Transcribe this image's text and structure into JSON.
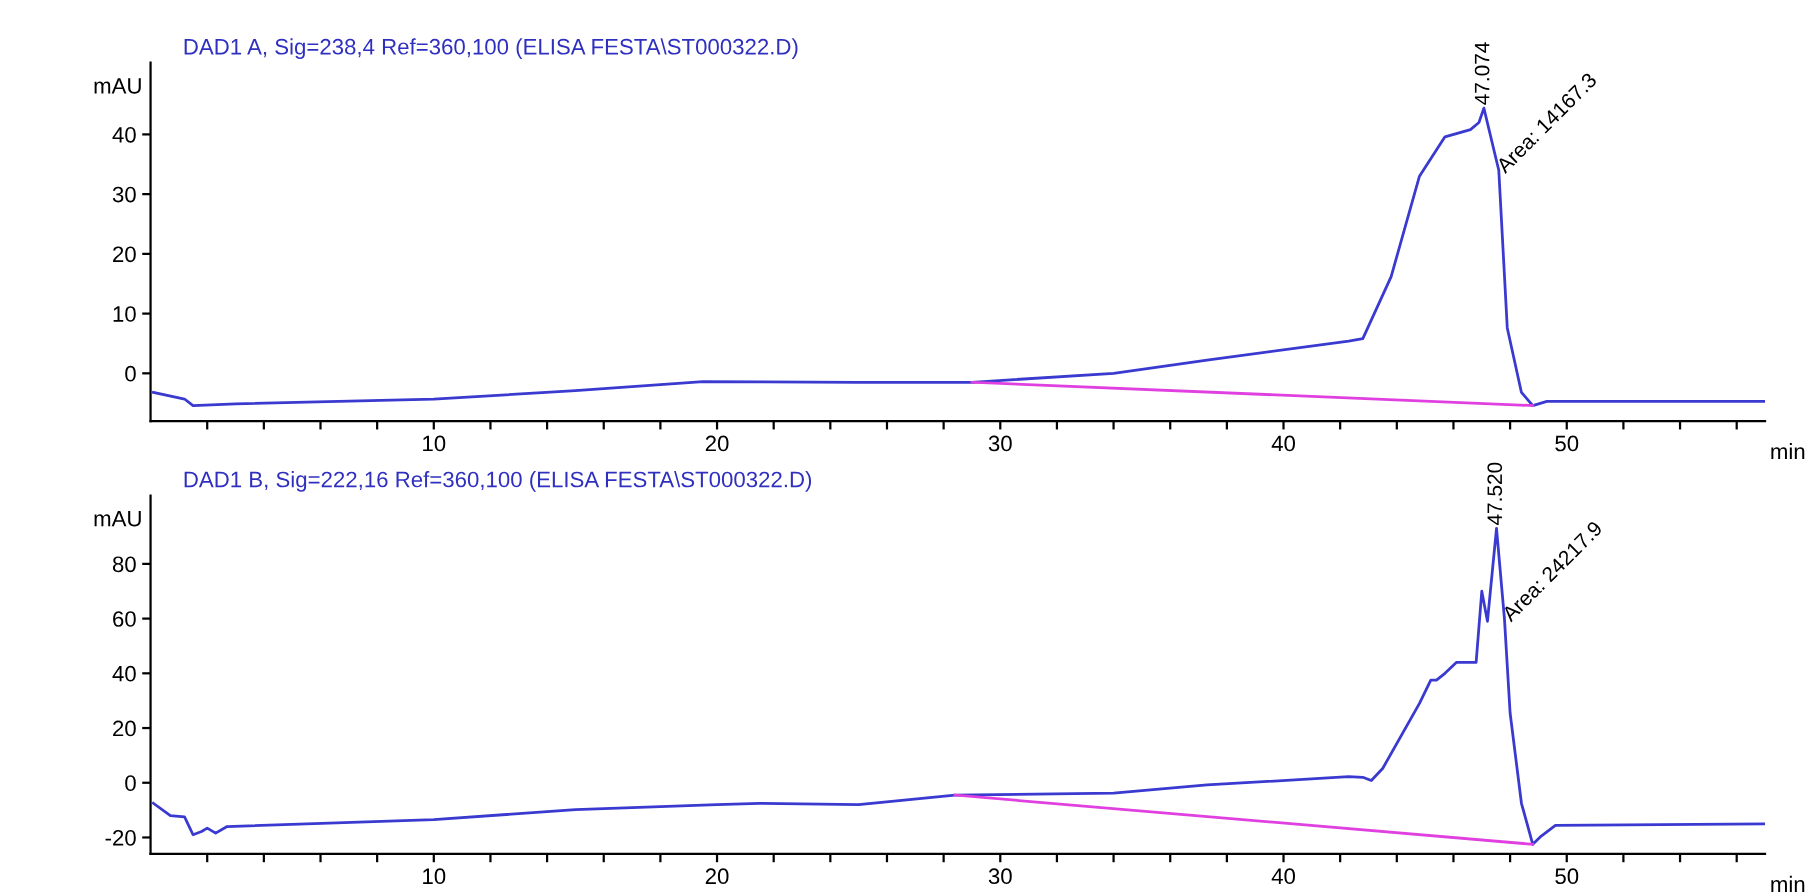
{
  "chart_data": [
    {
      "type": "line",
      "title": "DAD1 A, Sig=238,4 Ref=360,100 (ELISA FESTA\\ST000322.D)",
      "ylabel": "mAU",
      "xlabel": "min",
      "xlim": [
        0,
        57
      ],
      "ylim": [
        -8,
        52
      ],
      "xticks": [
        {
          "value": 2,
          "label": null
        },
        {
          "value": 4,
          "label": null
        },
        {
          "value": 6,
          "label": null
        },
        {
          "value": 8,
          "label": null
        },
        10,
        {
          "value": 12,
          "label": null
        },
        {
          "value": 14,
          "label": null
        },
        {
          "value": 16,
          "label": null
        },
        {
          "value": 18,
          "label": null
        },
        20,
        {
          "value": 22,
          "label": null
        },
        {
          "value": 24,
          "label": null
        },
        {
          "value": 26,
          "label": null
        },
        {
          "value": 28,
          "label": null
        },
        30,
        {
          "value": 32,
          "label": null
        },
        {
          "value": 34,
          "label": null
        },
        {
          "value": 36,
          "label": null
        },
        {
          "value": 38,
          "label": null
        },
        40,
        {
          "value": 42,
          "label": null
        },
        {
          "value": 44,
          "label": null
        },
        {
          "value": 46,
          "label": null
        },
        {
          "value": 48,
          "label": null
        },
        50,
        {
          "value": 52,
          "label": null
        },
        {
          "value": 54,
          "label": null
        },
        {
          "value": 56,
          "label": null
        }
      ],
      "yticks": [
        0,
        10,
        20,
        30,
        40
      ],
      "grid": false,
      "series": [
        {
          "color": "#3a3ad0",
          "x": [
            0.1,
            1.2,
            1.5,
            3,
            10,
            15,
            19.5,
            25,
            29.0,
            34.0,
            37.3,
            42.3,
            42.8,
            43.8,
            44.8,
            45.7,
            46.6,
            46.9,
            47.074,
            47.6,
            47.9,
            48.4,
            48.8,
            49.3,
            57
          ],
          "values": [
            -3.2,
            -4.3,
            -5.4,
            -5.1,
            -4.3,
            -2.9,
            -1.4,
            -1.5,
            -1.5,
            0,
            2.2,
            5.4,
            5.8,
            16.2,
            33,
            39.6,
            40.8,
            42,
            44.4,
            34,
            7.6,
            -3.2,
            -5.4,
            -4.7,
            -4.7
          ]
        },
        {
          "color": "#e040e0",
          "x": [
            29.0,
            48.8
          ],
          "values": [
            -1.5,
            -5.4
          ]
        }
      ],
      "annotations": [
        {
          "text": "47.074",
          "x": 47.074,
          "y": 44.4
        },
        {
          "text": "Area: 14167.3",
          "x": 47.6,
          "y": 34
        }
      ]
    },
    {
      "type": "line",
      "title": "DAD1 B, Sig=222,16 Ref=360,100 (ELISA FESTA\\ST000322.D)",
      "ylabel": "mAU",
      "xlabel": "min",
      "xlim": [
        0,
        57
      ],
      "ylim": [
        -26,
        105
      ],
      "xticks": [
        {
          "value": 2,
          "label": null
        },
        {
          "value": 4,
          "label": null
        },
        {
          "value": 6,
          "label": null
        },
        {
          "value": 8,
          "label": null
        },
        10,
        {
          "value": 12,
          "label": null
        },
        {
          "value": 14,
          "label": null
        },
        {
          "value": 16,
          "label": null
        },
        {
          "value": 18,
          "label": null
        },
        20,
        {
          "value": 22,
          "label": null
        },
        {
          "value": 24,
          "label": null
        },
        {
          "value": 26,
          "label": null
        },
        {
          "value": 28,
          "label": null
        },
        30,
        {
          "value": 32,
          "label": null
        },
        {
          "value": 34,
          "label": null
        },
        {
          "value": 36,
          "label": null
        },
        {
          "value": 38,
          "label": null
        },
        40,
        {
          "value": 42,
          "label": null
        },
        {
          "value": 44,
          "label": null
        },
        {
          "value": 46,
          "label": null
        },
        {
          "value": 48,
          "label": null
        },
        50,
        {
          "value": 52,
          "label": null
        },
        {
          "value": 54,
          "label": null
        },
        {
          "value": 56,
          "label": null
        }
      ],
      "yticks": [
        -20,
        0,
        20,
        40,
        60,
        80
      ],
      "grid": false,
      "series": [
        {
          "color": "#3a3ad0",
          "x": [
            0.1,
            0.7,
            1.2,
            1.5,
            1.8,
            2.0,
            2.3,
            2.7,
            10,
            15,
            20,
            21.5,
            25,
            28.4,
            34.0,
            37.3,
            42.3,
            42.8,
            43.1,
            43.5,
            44.8,
            45.2,
            45.4,
            45.7,
            46.1,
            46.8,
            47.0,
            47.2,
            47.52,
            47.8,
            48.0,
            48.4,
            48.8,
            49.1,
            49.6,
            57
          ],
          "values": [
            -7.5,
            -12,
            -12.5,
            -19,
            -17.8,
            -16.6,
            -18.4,
            -16,
            -13.5,
            -9.8,
            -8.0,
            -7.5,
            -8,
            -4.5,
            -3.8,
            -0.8,
            2.2,
            2,
            0.8,
            5.2,
            29,
            37.5,
            37.5,
            40,
            44,
            44,
            70,
            59,
            93,
            60,
            25.5,
            -7.5,
            -22.5,
            -19.5,
            -15.6,
            -15
          ]
        },
        {
          "color": "#e040e0",
          "x": [
            28.4,
            48.8
          ],
          "values": [
            -4.5,
            -22.5
          ]
        }
      ],
      "annotations": [
        {
          "text": "47.520",
          "x": 47.52,
          "y": 93
        },
        {
          "text": "Area: 24217.9",
          "x": 47.8,
          "y": 60
        }
      ]
    }
  ]
}
